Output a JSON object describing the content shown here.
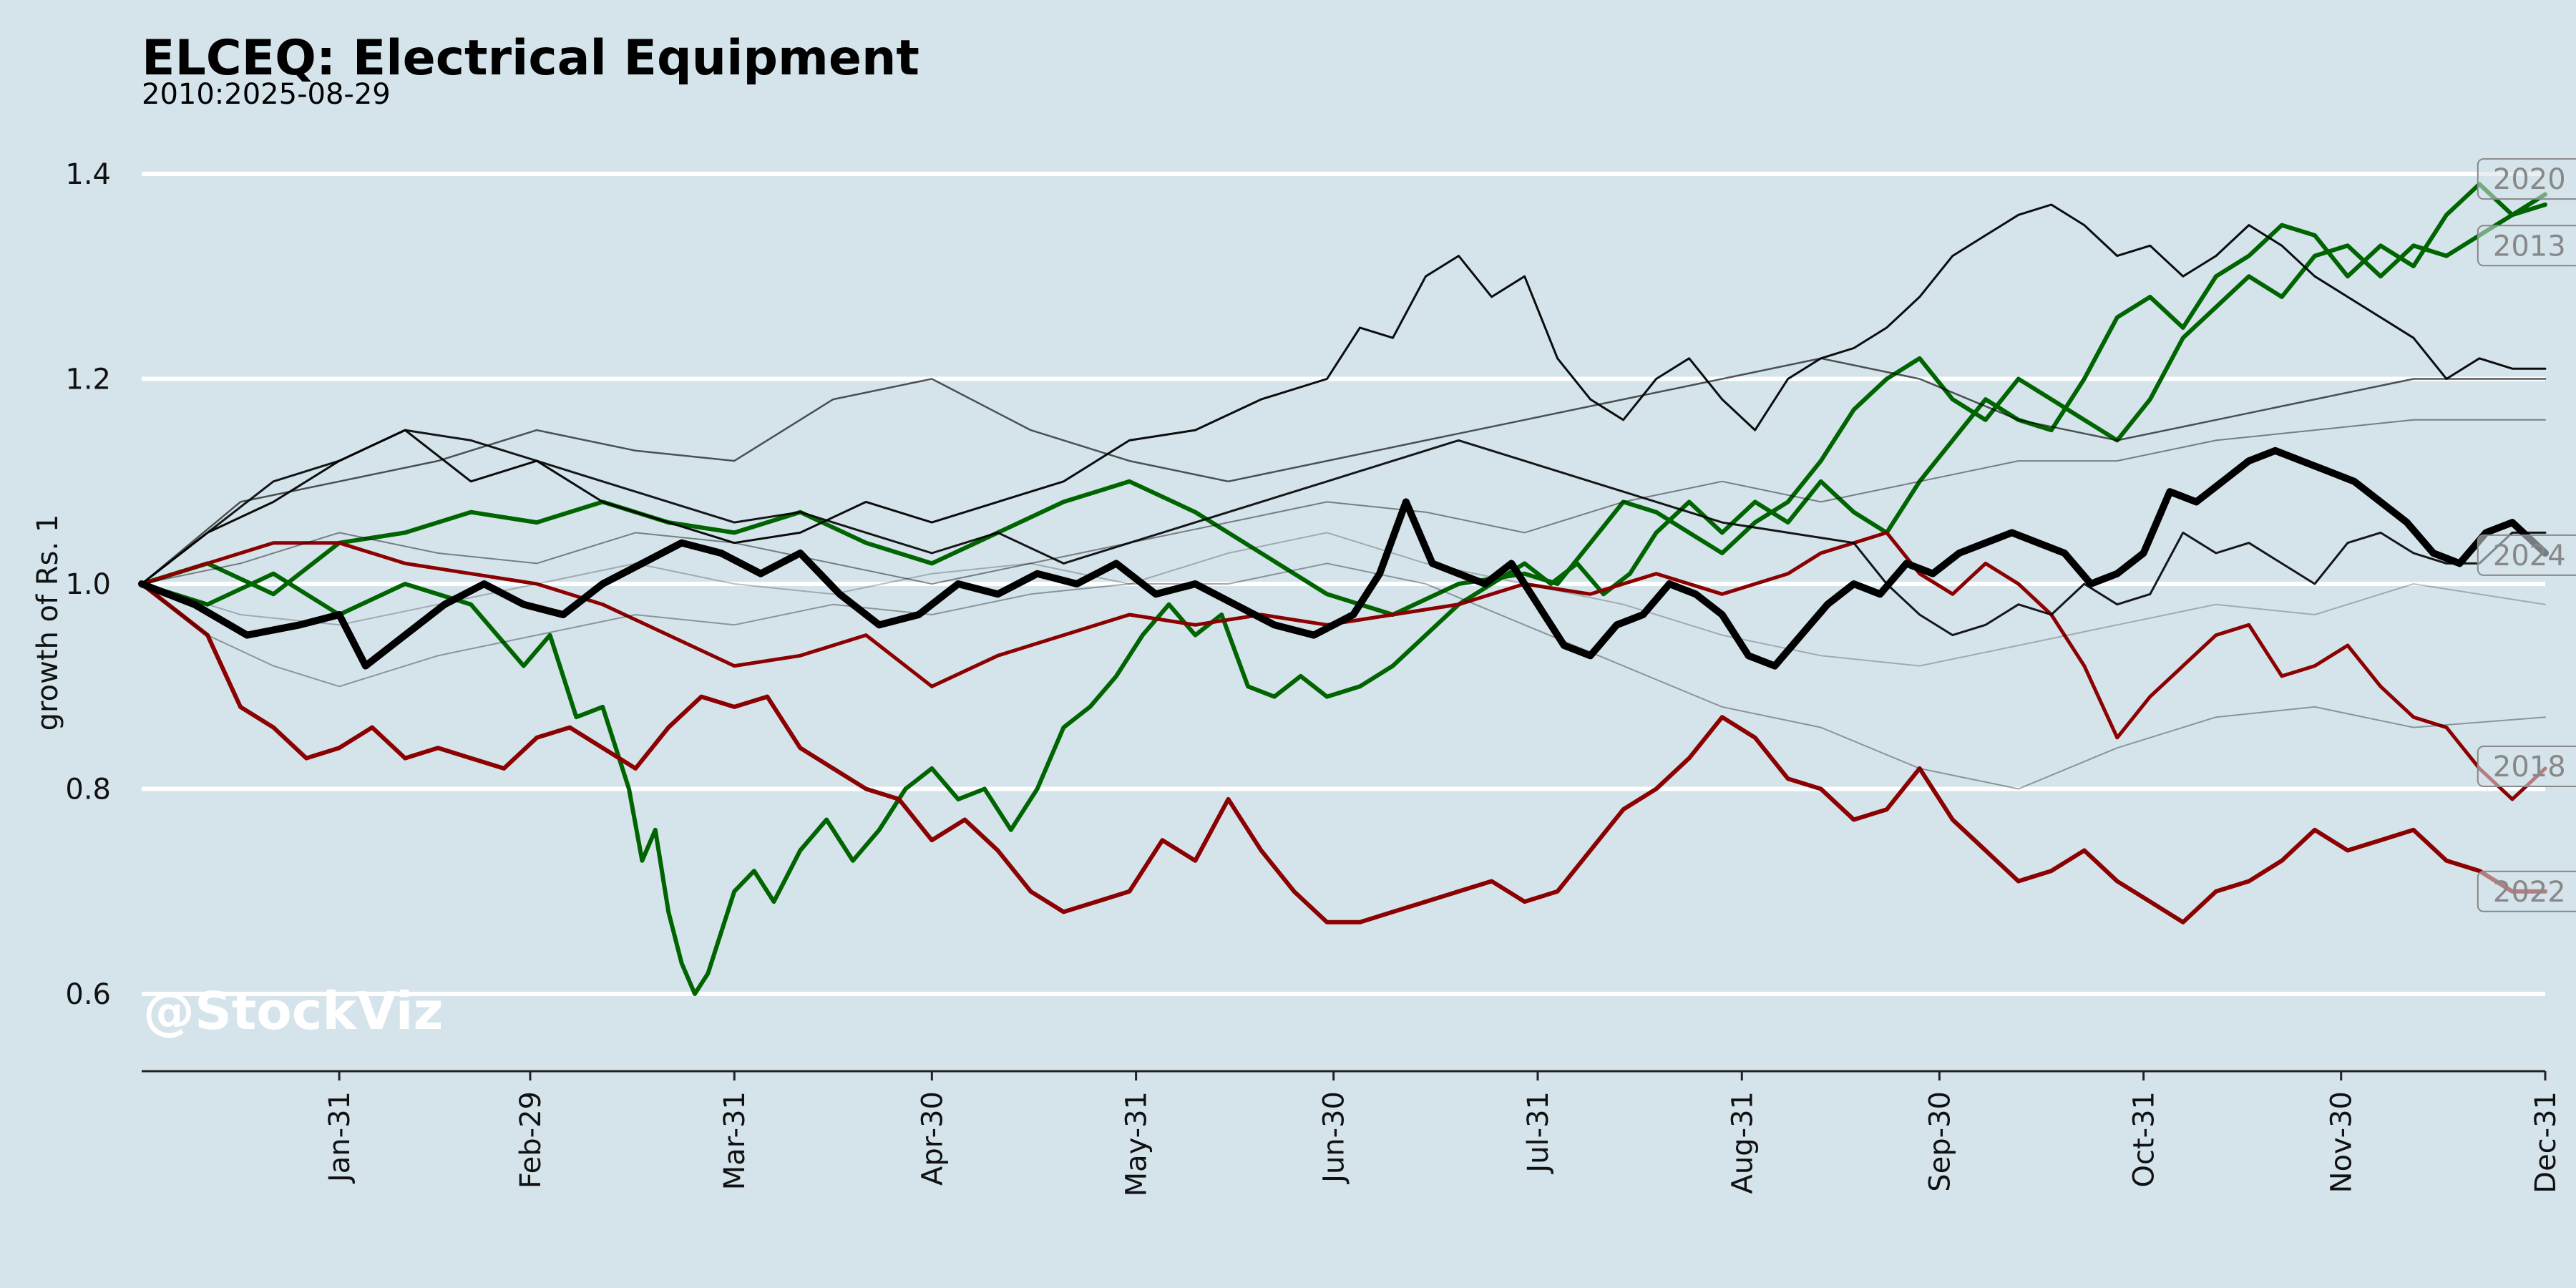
{
  "chart_data": {
    "type": "line",
    "title": "ELCEQ: Electrical Equipment",
    "subtitle": "2010:2025-08-29",
    "ylabel": "growth of Rs. 1",
    "xlabel": "",
    "watermark": "@StockViz",
    "background": "#d5e4eb",
    "grid": "horizontal",
    "xlim": [
      0,
      365
    ],
    "ylim": [
      0.54,
      1.43
    ],
    "yticks": [
      0.6,
      0.8,
      1.0,
      1.2,
      1.4
    ],
    "ytick_labels": [
      "0.6",
      "0.8",
      "1.0",
      "1.2",
      "1.4"
    ],
    "xticks": [
      30,
      59,
      90,
      120,
      151,
      181,
      212,
      243,
      273,
      304,
      334,
      365
    ],
    "xtick_labels": [
      "Jan-31",
      "Feb-29",
      "Mar-31",
      "Apr-30",
      "May-31",
      "Jun-30",
      "Jul-31",
      "Aug-31",
      "Sep-30",
      "Oct-31",
      "Nov-30",
      "Dec-31"
    ],
    "colors": {
      "2020": "#006400",
      "2013": "#006400",
      "2024": "#000000",
      "2018": "#8b0000",
      "2022": "#8b0000",
      "other": "#000000"
    },
    "series": [
      {
        "name": "2020",
        "color": "#006400",
        "width": 6,
        "opacity": 1,
        "x": [
          0,
          10,
          20,
          30,
          40,
          50,
          58,
          62,
          66,
          70,
          74,
          76,
          78,
          80,
          82,
          84,
          86,
          88,
          90,
          93,
          96,
          100,
          104,
          108,
          112,
          116,
          120,
          124,
          128,
          132,
          136,
          140,
          144,
          148,
          152,
          156,
          160,
          164,
          168,
          172,
          176,
          180,
          185,
          190,
          195,
          200,
          205,
          210,
          214,
          218,
          222,
          226,
          230,
          235,
          240,
          245,
          250,
          255,
          260,
          265,
          270,
          275,
          280,
          285,
          290,
          295,
          300,
          305,
          310,
          315,
          320,
          325,
          330,
          335,
          340,
          345,
          350,
          355,
          360,
          365
        ],
        "y": [
          1.0,
          0.98,
          1.01,
          0.97,
          1.0,
          0.98,
          0.92,
          0.95,
          0.87,
          0.88,
          0.8,
          0.73,
          0.76,
          0.68,
          0.63,
          0.6,
          0.62,
          0.66,
          0.7,
          0.72,
          0.69,
          0.74,
          0.77,
          0.73,
          0.76,
          0.8,
          0.82,
          0.79,
          0.8,
          0.76,
          0.8,
          0.86,
          0.88,
          0.91,
          0.95,
          0.98,
          0.95,
          0.97,
          0.9,
          0.89,
          0.91,
          0.89,
          0.9,
          0.92,
          0.95,
          0.98,
          1.0,
          1.02,
          1.0,
          1.02,
          0.99,
          1.01,
          1.05,
          1.08,
          1.05,
          1.08,
          1.06,
          1.1,
          1.07,
          1.05,
          1.1,
          1.14,
          1.18,
          1.16,
          1.15,
          1.2,
          1.26,
          1.28,
          1.25,
          1.3,
          1.32,
          1.35,
          1.34,
          1.3,
          1.33,
          1.31,
          1.36,
          1.39,
          1.36,
          1.38
        ]
      },
      {
        "name": "2013",
        "color": "#006400",
        "width": 6,
        "opacity": 1,
        "x": [
          0,
          10,
          20,
          30,
          40,
          50,
          60,
          70,
          80,
          90,
          100,
          110,
          120,
          130,
          140,
          150,
          160,
          170,
          180,
          190,
          200,
          210,
          215,
          220,
          225,
          230,
          235,
          240,
          245,
          250,
          255,
          260,
          265,
          270,
          275,
          280,
          285,
          290,
          295,
          300,
          305,
          310,
          315,
          320,
          325,
          330,
          335,
          340,
          345,
          350,
          355,
          360,
          365
        ],
        "y": [
          1.0,
          1.02,
          0.99,
          1.04,
          1.05,
          1.07,
          1.06,
          1.08,
          1.06,
          1.05,
          1.07,
          1.04,
          1.02,
          1.05,
          1.08,
          1.1,
          1.07,
          1.03,
          0.99,
          0.97,
          1.0,
          1.01,
          1.0,
          1.04,
          1.08,
          1.07,
          1.05,
          1.03,
          1.06,
          1.08,
          1.12,
          1.17,
          1.2,
          1.22,
          1.18,
          1.16,
          1.2,
          1.18,
          1.16,
          1.14,
          1.18,
          1.24,
          1.27,
          1.3,
          1.28,
          1.32,
          1.33,
          1.3,
          1.33,
          1.32,
          1.34,
          1.36,
          1.37
        ]
      },
      {
        "name": "2018",
        "color": "#8b0000",
        "width": 5,
        "opacity": 1,
        "x": [
          0,
          10,
          20,
          30,
          40,
          50,
          60,
          70,
          80,
          90,
          100,
          110,
          120,
          130,
          140,
          150,
          160,
          170,
          180,
          190,
          200,
          210,
          220,
          230,
          240,
          250,
          255,
          260,
          265,
          270,
          275,
          280,
          285,
          290,
          295,
          300,
          305,
          310,
          315,
          320,
          325,
          330,
          335,
          340,
          345,
          350,
          355,
          360,
          365
        ],
        "y": [
          1.0,
          1.02,
          1.04,
          1.04,
          1.02,
          1.01,
          1.0,
          0.98,
          0.95,
          0.92,
          0.93,
          0.95,
          0.9,
          0.93,
          0.95,
          0.97,
          0.96,
          0.97,
          0.96,
          0.97,
          0.98,
          1.0,
          0.99,
          1.01,
          0.99,
          1.01,
          1.03,
          1.04,
          1.05,
          1.01,
          0.99,
          1.02,
          1.0,
          0.97,
          0.92,
          0.85,
          0.89,
          0.92,
          0.95,
          0.96,
          0.91,
          0.92,
          0.94,
          0.9,
          0.87,
          0.86,
          0.82,
          0.79,
          0.82
        ]
      },
      {
        "name": "2022",
        "color": "#8b0000",
        "width": 6,
        "opacity": 1,
        "x": [
          0,
          10,
          15,
          20,
          25,
          30,
          35,
          40,
          45,
          50,
          55,
          60,
          65,
          70,
          75,
          80,
          85,
          90,
          95,
          100,
          105,
          110,
          115,
          120,
          125,
          130,
          135,
          140,
          145,
          150,
          155,
          160,
          165,
          170,
          175,
          180,
          185,
          190,
          195,
          200,
          205,
          210,
          215,
          220,
          225,
          230,
          235,
          240,
          245,
          250,
          255,
          260,
          265,
          270,
          275,
          280,
          285,
          290,
          295,
          300,
          305,
          310,
          315,
          320,
          325,
          330,
          335,
          340,
          345,
          350,
          355,
          360,
          365
        ],
        "y": [
          1.0,
          0.95,
          0.88,
          0.86,
          0.83,
          0.84,
          0.86,
          0.83,
          0.84,
          0.83,
          0.82,
          0.85,
          0.86,
          0.84,
          0.82,
          0.86,
          0.89,
          0.88,
          0.89,
          0.84,
          0.82,
          0.8,
          0.79,
          0.75,
          0.77,
          0.74,
          0.7,
          0.68,
          0.69,
          0.7,
          0.75,
          0.73,
          0.79,
          0.74,
          0.7,
          0.67,
          0.67,
          0.68,
          0.69,
          0.7,
          0.71,
          0.69,
          0.7,
          0.74,
          0.78,
          0.8,
          0.83,
          0.87,
          0.85,
          0.81,
          0.8,
          0.77,
          0.78,
          0.82,
          0.77,
          0.74,
          0.71,
          0.72,
          0.74,
          0.71,
          0.69,
          0.67,
          0.7,
          0.71,
          0.73,
          0.76,
          0.74,
          0.75,
          0.76,
          0.73,
          0.72,
          0.7,
          0.7
        ]
      },
      {
        "name": "2024",
        "color": "#000000",
        "width": 10,
        "opacity": 1,
        "x": [
          0,
          8,
          16,
          24,
          30,
          34,
          40,
          46,
          52,
          58,
          64,
          70,
          76,
          82,
          88,
          94,
          100,
          106,
          112,
          118,
          124,
          130,
          136,
          142,
          148,
          154,
          160,
          166,
          172,
          178,
          184,
          188,
          192,
          196,
          200,
          204,
          208,
          212,
          216,
          220,
          224,
          228,
          232,
          236,
          240,
          244,
          248,
          252,
          256,
          260,
          264,
          268,
          272,
          276,
          280,
          284,
          288,
          292,
          296,
          300,
          304,
          308,
          312,
          316,
          320,
          324,
          328,
          332,
          336,
          340,
          344,
          348,
          352,
          356,
          360,
          365
        ],
        "y": [
          1.0,
          0.98,
          0.95,
          0.96,
          0.97,
          0.92,
          0.95,
          0.98,
          1.0,
          0.98,
          0.97,
          1.0,
          1.02,
          1.04,
          1.03,
          1.01,
          1.03,
          0.99,
          0.96,
          0.97,
          1.0,
          0.99,
          1.01,
          1.0,
          1.02,
          0.99,
          1.0,
          0.98,
          0.96,
          0.95,
          0.97,
          1.01,
          1.08,
          1.02,
          1.01,
          1.0,
          1.02,
          0.98,
          0.94,
          0.93,
          0.96,
          0.97,
          1.0,
          0.99,
          0.97,
          0.93,
          0.92,
          0.95,
          0.98,
          1.0,
          0.99,
          1.02,
          1.01,
          1.03,
          1.04,
          1.05,
          1.04,
          1.03,
          1.0,
          1.01,
          1.03,
          1.09,
          1.08,
          1.1,
          1.12,
          1.13,
          1.12,
          1.11,
          1.1,
          1.08,
          1.06,
          1.03,
          1.02,
          1.05,
          1.06,
          1.03
        ]
      },
      {
        "name": "",
        "color": "#000000",
        "width": 3,
        "opacity": 0.95,
        "x": [
          0,
          10,
          20,
          30,
          40,
          50,
          60,
          70,
          80,
          90,
          100,
          110,
          120,
          130,
          140,
          150,
          160,
          170,
          180,
          185,
          190,
          195,
          200,
          205,
          210,
          215,
          220,
          225,
          230,
          235,
          240,
          245,
          250,
          255,
          260,
          265,
          270,
          275,
          280,
          285,
          290,
          295,
          300,
          305,
          310,
          315,
          320,
          325,
          330,
          335,
          340,
          345,
          350,
          355,
          360,
          365
        ],
        "y": [
          1.0,
          1.05,
          1.08,
          1.12,
          1.15,
          1.1,
          1.12,
          1.08,
          1.06,
          1.04,
          1.05,
          1.08,
          1.06,
          1.08,
          1.1,
          1.14,
          1.15,
          1.18,
          1.2,
          1.25,
          1.24,
          1.3,
          1.32,
          1.28,
          1.3,
          1.22,
          1.18,
          1.16,
          1.2,
          1.22,
          1.18,
          1.15,
          1.2,
          1.22,
          1.23,
          1.25,
          1.28,
          1.32,
          1.34,
          1.36,
          1.37,
          1.35,
          1.32,
          1.33,
          1.3,
          1.32,
          1.35,
          1.33,
          1.3,
          1.28,
          1.26,
          1.24,
          1.2,
          1.22,
          1.21,
          1.21
        ]
      },
      {
        "name": "",
        "color": "#000000",
        "width": 3,
        "opacity": 0.9,
        "x": [
          0,
          10,
          20,
          30,
          40,
          50,
          60,
          70,
          80,
          90,
          100,
          110,
          120,
          130,
          140,
          150,
          160,
          170,
          180,
          190,
          200,
          210,
          220,
          230,
          240,
          250,
          260,
          265,
          270,
          275,
          280,
          285,
          290,
          295,
          300,
          305,
          310,
          315,
          320,
          325,
          330,
          335,
          340,
          345,
          350,
          355,
          360,
          365
        ],
        "y": [
          1.0,
          1.05,
          1.1,
          1.12,
          1.15,
          1.14,
          1.12,
          1.1,
          1.08,
          1.06,
          1.07,
          1.05,
          1.03,
          1.05,
          1.02,
          1.04,
          1.06,
          1.08,
          1.1,
          1.12,
          1.14,
          1.12,
          1.1,
          1.08,
          1.06,
          1.05,
          1.04,
          1.0,
          0.97,
          0.95,
          0.96,
          0.98,
          0.97,
          1.0,
          0.98,
          0.99,
          1.05,
          1.03,
          1.04,
          1.02,
          1.0,
          1.04,
          1.05,
          1.03,
          1.02,
          1.02,
          1.05,
          1.05
        ]
      },
      {
        "name": "",
        "color": "#000000",
        "width": 2.5,
        "opacity": 0.65,
        "x": [
          0,
          15,
          30,
          45,
          60,
          75,
          90,
          105,
          120,
          135,
          150,
          165,
          180,
          195,
          210,
          225,
          240,
          255,
          270,
          285,
          300,
          315,
          330,
          345,
          365
        ],
        "y": [
          1.0,
          1.08,
          1.1,
          1.12,
          1.15,
          1.13,
          1.12,
          1.18,
          1.2,
          1.15,
          1.12,
          1.1,
          1.12,
          1.14,
          1.16,
          1.18,
          1.2,
          1.22,
          1.2,
          1.16,
          1.14,
          1.16,
          1.18,
          1.2,
          1.2
        ]
      },
      {
        "name": "",
        "color": "#000000",
        "width": 2,
        "opacity": 0.45,
        "x": [
          0,
          15,
          30,
          45,
          60,
          75,
          90,
          105,
          120,
          135,
          150,
          165,
          180,
          195,
          210,
          225,
          240,
          255,
          270,
          285,
          300,
          315,
          330,
          345,
          365
        ],
        "y": [
          1.0,
          1.02,
          1.05,
          1.03,
          1.02,
          1.05,
          1.04,
          1.02,
          1.0,
          1.02,
          1.04,
          1.06,
          1.08,
          1.07,
          1.05,
          1.08,
          1.1,
          1.08,
          1.1,
          1.12,
          1.12,
          1.14,
          1.15,
          1.16,
          1.16
        ]
      },
      {
        "name": "",
        "color": "#000000",
        "width": 2,
        "opacity": 0.35,
        "x": [
          0,
          10,
          20,
          30,
          45,
          60,
          75,
          90,
          105,
          120,
          135,
          150,
          165,
          180,
          195,
          210,
          225,
          240,
          255,
          270,
          285,
          300,
          315,
          330,
          345,
          365
        ],
        "y": [
          1.0,
          0.95,
          0.92,
          0.9,
          0.93,
          0.95,
          0.97,
          0.96,
          0.98,
          0.97,
          0.99,
          1.0,
          1.0,
          1.02,
          1.0,
          0.96,
          0.92,
          0.88,
          0.86,
          0.82,
          0.8,
          0.84,
          0.87,
          0.88,
          0.86,
          0.87
        ]
      },
      {
        "name": "",
        "color": "#000000",
        "width": 2,
        "opacity": 0.25,
        "x": [
          0,
          15,
          30,
          45,
          60,
          75,
          90,
          105,
          120,
          135,
          150,
          165,
          180,
          195,
          210,
          225,
          240,
          255,
          270,
          285,
          300,
          315,
          330,
          345,
          365
        ],
        "y": [
          1.0,
          0.97,
          0.96,
          0.98,
          1.0,
          1.02,
          1.0,
          0.99,
          1.01,
          1.02,
          1.0,
          1.03,
          1.05,
          1.02,
          1.0,
          0.98,
          0.95,
          0.93,
          0.92,
          0.94,
          0.96,
          0.98,
          0.97,
          1.0,
          0.98
        ]
      }
    ],
    "year_labels": [
      {
        "text": "2020",
        "x": 364,
        "y": 1.395
      },
      {
        "text": "2013",
        "x": 364,
        "y": 1.33
      },
      {
        "text": "2024",
        "x": 364,
        "y": 1.028
      },
      {
        "text": "2018",
        "x": 364,
        "y": 0.822
      },
      {
        "text": "2022",
        "x": 364,
        "y": 0.7
      }
    ]
  }
}
